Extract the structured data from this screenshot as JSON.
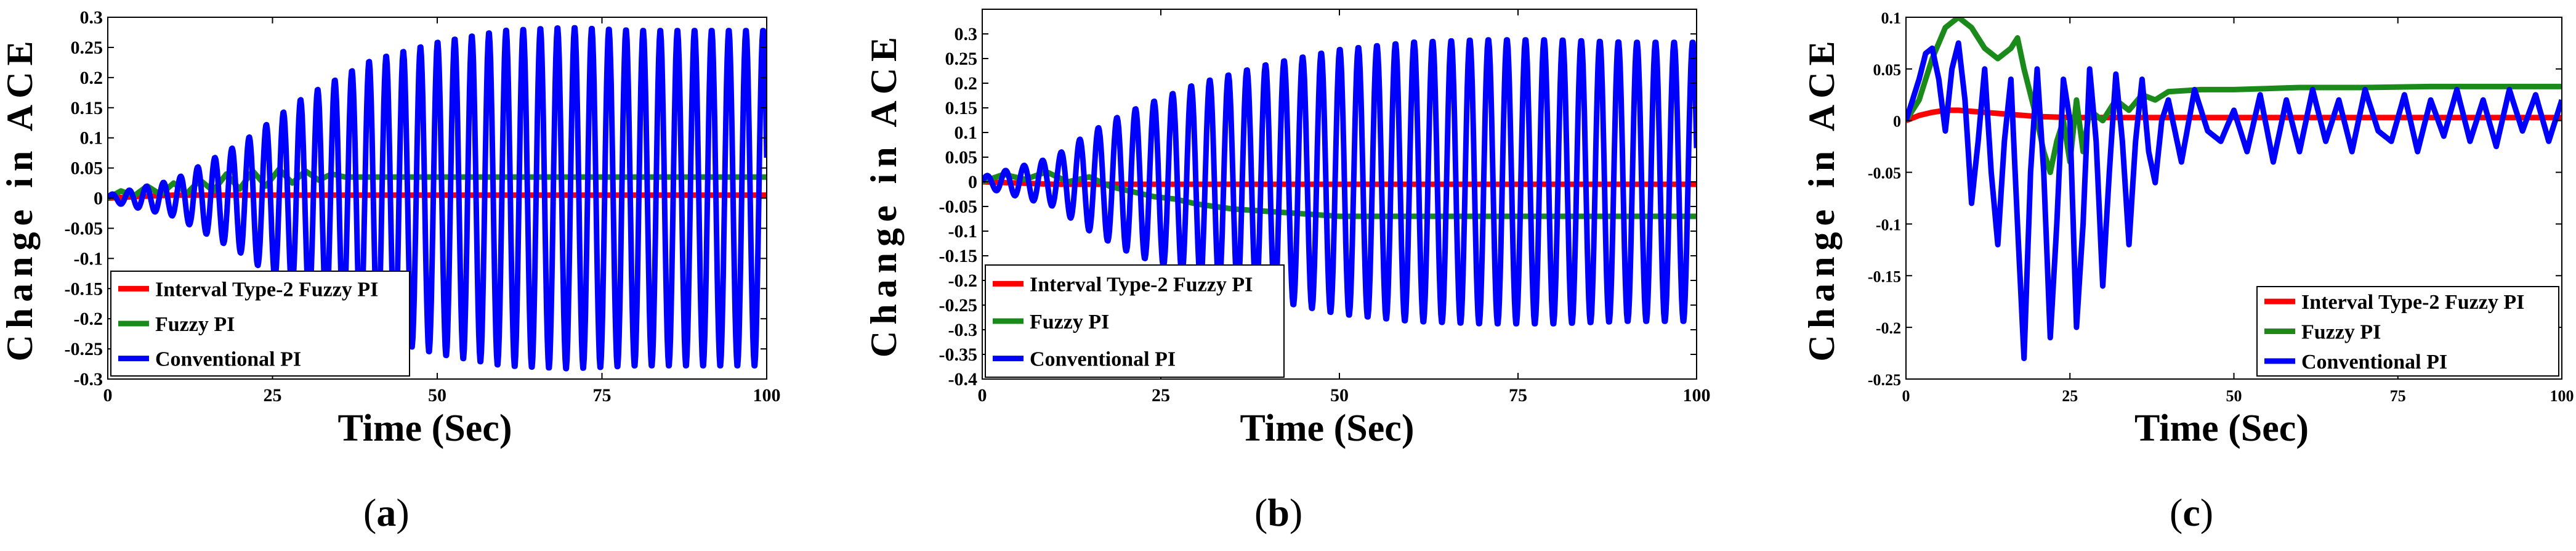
{
  "figure": {
    "labels": [
      "(a)",
      "(b)",
      "(c)"
    ],
    "letters": [
      "a",
      "b",
      "c"
    ]
  },
  "colors": {
    "it2": "#ff0000",
    "fuzzy": "#1a8a1a",
    "conventional": "#0000ff",
    "axis": "#000000"
  },
  "chart_data": [
    {
      "type": "line",
      "id": "a",
      "title": "",
      "xlabel": "Time (Sec)",
      "ylabel": "Change in ACE",
      "xlim": [
        0,
        100
      ],
      "ylim": [
        -0.3,
        0.3
      ],
      "xticks": [
        0,
        25,
        50,
        75,
        100
      ],
      "yticks": [
        -0.3,
        -0.25,
        -0.2,
        -0.15,
        -0.1,
        -0.05,
        0,
        0.05,
        0.1,
        0.15,
        0.2,
        0.25,
        0.3
      ],
      "ytick_labels": [
        "-0.3",
        "-0.25",
        "-0.2",
        "-0.15",
        "-0.1",
        "-0.05",
        "0",
        "0.05",
        "0.1",
        "0.15",
        "0.2",
        "0.25",
        "0.3"
      ],
      "legend": "bottom-left",
      "series": [
        {
          "name": "Interval Type-2 Fuzzy PI",
          "color_key": "it2",
          "x": [
            0,
            5,
            10,
            20,
            40,
            60,
            80,
            100
          ],
          "y": [
            0,
            0.003,
            0.005,
            0.005,
            0.005,
            0.005,
            0.005,
            0.005
          ]
        },
        {
          "name": "Fuzzy PI",
          "color_key": "fuzzy",
          "x": [
            0,
            2,
            4,
            6,
            8,
            10,
            12,
            14,
            16,
            18,
            20,
            22,
            24,
            26,
            28,
            30,
            32,
            34,
            36,
            40,
            50,
            60,
            70,
            80,
            90,
            100
          ],
          "y": [
            0,
            0.012,
            0.004,
            0.02,
            0.006,
            0.025,
            0.008,
            0.03,
            0.012,
            0.04,
            0.015,
            0.045,
            0.02,
            0.048,
            0.025,
            0.045,
            0.03,
            0.04,
            0.035,
            0.035,
            0.035,
            0.035,
            0.035,
            0.035,
            0.035,
            0.035
          ]
        },
        {
          "name": "Conventional PI",
          "color_key": "conventional",
          "x": [
            0,
            10,
            20,
            30,
            40,
            50,
            60,
            70,
            80,
            90,
            100
          ],
          "amplitude": [
            0.005,
            0.03,
            0.09,
            0.17,
            0.23,
            0.26,
            0.28,
            0.285,
            0.28,
            0.28,
            0.28
          ],
          "period": 2.6,
          "offset": 0.0
        }
      ]
    },
    {
      "type": "line",
      "id": "b",
      "title": "",
      "xlabel": "Time (Sec)",
      "ylabel": "Change in ACE",
      "xlim": [
        0,
        100
      ],
      "ylim": [
        -0.4,
        0.35
      ],
      "xticks": [
        0,
        25,
        50,
        75,
        100
      ],
      "yticks": [
        -0.4,
        -0.35,
        -0.3,
        -0.25,
        -0.2,
        -0.15,
        -0.1,
        -0.05,
        0,
        0.05,
        0.1,
        0.15,
        0.2,
        0.25,
        0.3
      ],
      "ytick_labels": [
        "-0.4",
        "-0.35",
        "-0.3",
        "-0.25",
        "-0.2",
        "-0.15",
        "-0.1",
        "-0.05",
        "0",
        "0.05",
        "0.1",
        "0.15",
        "0.2",
        "0.25",
        "0.3"
      ],
      "legend": "bottom-left",
      "series": [
        {
          "name": "Interval Type-2 Fuzzy PI",
          "color_key": "it2",
          "x": [
            0,
            10,
            15,
            20,
            40,
            60,
            80,
            100
          ],
          "y": [
            0,
            -0.005,
            -0.005,
            -0.005,
            -0.005,
            -0.005,
            -0.005,
            -0.005
          ]
        },
        {
          "name": "Fuzzy PI",
          "color_key": "fuzzy",
          "x": [
            0,
            3,
            6,
            9,
            12,
            15,
            18,
            21,
            24,
            27,
            30,
            35,
            40,
            45,
            50,
            60,
            70,
            80,
            90,
            100
          ],
          "y": [
            0,
            0.015,
            0.005,
            0.02,
            0.0,
            0.01,
            -0.01,
            -0.02,
            -0.03,
            -0.035,
            -0.045,
            -0.055,
            -0.06,
            -0.065,
            -0.07,
            -0.07,
            -0.07,
            -0.07,
            -0.07,
            -0.07
          ]
        },
        {
          "name": "Conventional PI",
          "color_key": "conventional",
          "x": [
            0,
            10,
            15,
            20,
            30,
            40,
            50,
            60,
            70,
            80,
            90,
            100
          ],
          "amplitude": [
            0.01,
            0.05,
            0.1,
            0.14,
            0.2,
            0.24,
            0.27,
            0.285,
            0.29,
            0.29,
            0.285,
            0.285
          ],
          "period": 2.6,
          "offset": 0.0
        }
      ]
    },
    {
      "type": "line",
      "id": "c",
      "title": "",
      "xlabel": "Time (Sec)",
      "ylabel": "Change in ACE",
      "xlim": [
        0,
        100
      ],
      "ylim": [
        -0.25,
        0.1
      ],
      "xticks": [
        0,
        25,
        50,
        75,
        100
      ],
      "yticks": [
        -0.25,
        -0.2,
        -0.15,
        -0.1,
        -0.05,
        0,
        0.05,
        0.1
      ],
      "ytick_labels": [
        "-0.25",
        "-0.2",
        "-0.15",
        "-0.1",
        "-0.05",
        "0",
        "0.05",
        "0.1"
      ],
      "legend": "bottom-right",
      "series": [
        {
          "name": "Interval Type-2 Fuzzy PI",
          "color_key": "it2",
          "x": [
            0,
            2,
            4,
            6,
            8,
            10,
            12,
            14,
            16,
            18,
            20,
            25,
            30,
            40,
            50,
            60,
            70,
            80,
            90,
            100
          ],
          "y": [
            0,
            0.005,
            0.008,
            0.01,
            0.01,
            0.009,
            0.008,
            0.007,
            0.006,
            0.005,
            0.004,
            0.003,
            0.003,
            0.003,
            0.003,
            0.003,
            0.003,
            0.003,
            0.003,
            0.003
          ]
        },
        {
          "name": "Fuzzy PI",
          "color_key": "fuzzy",
          "x": [
            0,
            2,
            4,
            6,
            8,
            10,
            12,
            14,
            16,
            17,
            18,
            20,
            21,
            22,
            23,
            24,
            25,
            26,
            27,
            28,
            30,
            32,
            34,
            36,
            38,
            40,
            45,
            50,
            60,
            70,
            80,
            90,
            100
          ],
          "y": [
            0,
            0.02,
            0.06,
            0.09,
            0.1,
            0.09,
            0.07,
            0.06,
            0.07,
            0.08,
            0.05,
            0.0,
            -0.03,
            -0.05,
            -0.02,
            0.0,
            -0.04,
            0.02,
            -0.03,
            0.01,
            0.0,
            0.02,
            0.01,
            0.025,
            0.02,
            0.028,
            0.03,
            0.03,
            0.032,
            0.032,
            0.033,
            0.033,
            0.033
          ]
        },
        {
          "name": "Conventional PI",
          "color_key": "conventional",
          "x": [
            0,
            2,
            3,
            4,
            5,
            6,
            7,
            8,
            9,
            10,
            11,
            12,
            13,
            14,
            15,
            16,
            17,
            18,
            19,
            20,
            21,
            22,
            23,
            24,
            25,
            26,
            27,
            28,
            29,
            30,
            31,
            32,
            33,
            34,
            35,
            36,
            37,
            38,
            39,
            40,
            42,
            44,
            46,
            48,
            50,
            52,
            54,
            56,
            58,
            60,
            62,
            64,
            66,
            68,
            70,
            72,
            74,
            76,
            78,
            80,
            82,
            84,
            86,
            88,
            90,
            92,
            94,
            96,
            98,
            100
          ],
          "y": [
            0,
            0.04,
            0.065,
            0.07,
            0.04,
            -0.01,
            0.05,
            0.075,
            0.02,
            -0.08,
            -0.02,
            0.05,
            -0.05,
            -0.12,
            -0.02,
            0.04,
            -0.1,
            -0.23,
            -0.05,
            0.05,
            -0.05,
            -0.21,
            -0.1,
            0.04,
            0.0,
            -0.2,
            -0.1,
            0.05,
            -0.02,
            -0.16,
            -0.05,
            0.045,
            -0.02,
            -0.12,
            -0.02,
            0.04,
            -0.03,
            -0.06,
            0.0,
            0.02,
            -0.04,
            0.03,
            -0.01,
            -0.02,
            0.01,
            -0.03,
            0.025,
            -0.04,
            0.02,
            -0.03,
            0.03,
            -0.02,
            0.02,
            -0.03,
            0.03,
            -0.01,
            -0.02,
            0.025,
            -0.03,
            0.02,
            -0.015,
            0.03,
            -0.02,
            0.02,
            -0.025,
            0.03,
            -0.01,
            0.025,
            -0.02,
            0.02
          ]
        }
      ]
    }
  ]
}
